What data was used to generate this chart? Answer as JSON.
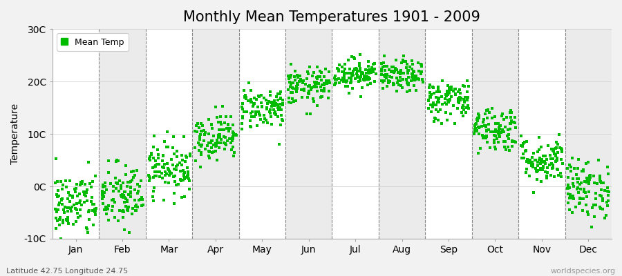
{
  "title": "Monthly Mean Temperatures 1901 - 2009",
  "ylabel": "Temperature",
  "ylim": [
    -10,
    30
  ],
  "yticks": [
    -10,
    0,
    10,
    20,
    30
  ],
  "ytick_labels": [
    "-10C",
    "0C",
    "10C",
    "20C",
    "30C"
  ],
  "months": [
    "Jan",
    "Feb",
    "Mar",
    "Apr",
    "May",
    "Jun",
    "Jul",
    "Aug",
    "Sep",
    "Oct",
    "Nov",
    "Dec"
  ],
  "month_means": [
    -3.5,
    -2.0,
    3.5,
    9.5,
    15.0,
    19.0,
    21.5,
    21.0,
    16.5,
    11.0,
    5.0,
    -0.5
  ],
  "month_stds": [
    3.2,
    3.2,
    2.5,
    2.2,
    2.0,
    1.8,
    1.5,
    1.5,
    2.0,
    2.2,
    2.2,
    2.8
  ],
  "n_years": 109,
  "dot_color": "#00BB00",
  "dot_size": 9,
  "background_color": "#F2F2F2",
  "plot_bg_color": "#FFFFFF",
  "alt_band_color": "#EBEBEB",
  "grid_color": "#888888",
  "title_fontsize": 15,
  "axis_label_fontsize": 10,
  "tick_fontsize": 10,
  "footer_left": "Latitude 42.75 Longitude 24.75",
  "footer_right": "worldspecies.org",
  "legend_label": "Mean Temp",
  "seed": 42
}
